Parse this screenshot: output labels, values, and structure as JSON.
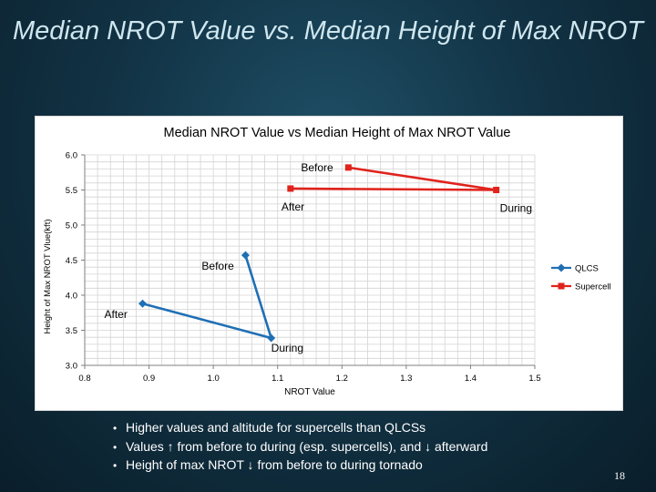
{
  "slide": {
    "title": "Median NROT Value vs. Median Height of Max NROT",
    "bullets": [
      "Higher values and altitude for supercells than QLCSs",
      "Values ↑ from before to during (esp. supercells), and ↓ afterward",
      "Height of max NROT ↓ from before to during tornado"
    ],
    "page_number": "18"
  },
  "chart_data": {
    "type": "line",
    "title": "Median NROT Value vs Median Height of Max NROT Value",
    "xlabel": "NROT Value",
    "ylabel": "Height of Max NROT Vlue(kft)",
    "xlim": [
      0.8,
      1.5
    ],
    "ylim": [
      3.0,
      6.0
    ],
    "x_ticks": [
      "0.8",
      "0.9",
      "1.0",
      "1.1",
      "1.2",
      "1.3",
      "1.4",
      "1.5"
    ],
    "y_ticks": [
      "3.0",
      "3.5",
      "4.0",
      "4.5",
      "5.0",
      "5.5",
      "6.0"
    ],
    "grid": true,
    "legend_position": "right",
    "series": [
      {
        "name": "QLCS",
        "color": "#1f6fb5",
        "marker": "diamond",
        "points": [
          {
            "label": "Before",
            "x": 1.05,
            "y": 4.57
          },
          {
            "label": "During",
            "x": 1.09,
            "y": 3.39
          },
          {
            "label": "After",
            "x": 0.89,
            "y": 3.88
          }
        ]
      },
      {
        "name": "Supercell",
        "color": "#e0231c",
        "marker": "square",
        "points": [
          {
            "label": "Before",
            "x": 1.21,
            "y": 5.82
          },
          {
            "label": "During",
            "x": 1.44,
            "y": 5.5
          },
          {
            "label": "After",
            "x": 1.12,
            "y": 5.52
          }
        ]
      }
    ]
  }
}
